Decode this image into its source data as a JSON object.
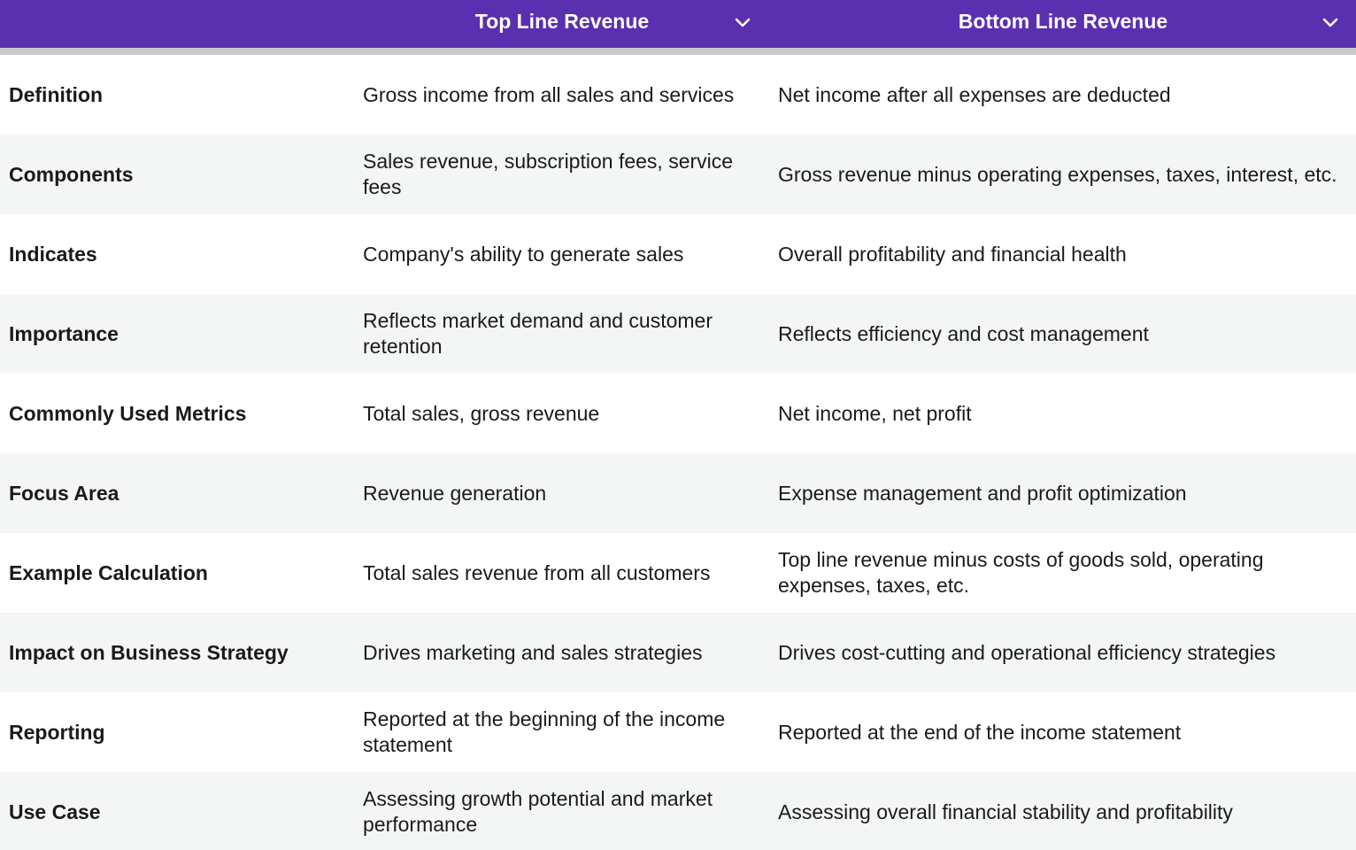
{
  "header": {
    "col1_label": "Top Line Revenue",
    "col2_label": "Bottom Line Revenue"
  },
  "colors": {
    "header_bg": "#5a2fb0",
    "header_text": "#ffffff",
    "row_alt": "#f4f6f6"
  },
  "rows": [
    {
      "label": "Definition",
      "top": "Gross income from all sales and services",
      "bottom": "Net income after all expenses are deducted"
    },
    {
      "label": "Components",
      "top": "Sales revenue, subscription fees, service fees",
      "bottom": "Gross revenue minus operating expenses, taxes, interest, etc."
    },
    {
      "label": "Indicates",
      "top": "Company's ability to generate sales",
      "bottom": "Overall profitability and financial health"
    },
    {
      "label": "Importance",
      "top": "Reflects market demand and customer retention",
      "bottom": "Reflects efficiency and cost management"
    },
    {
      "label": "Commonly Used Metrics",
      "top": "Total sales, gross revenue",
      "bottom": "Net income, net profit"
    },
    {
      "label": "Focus Area",
      "top": "Revenue generation",
      "bottom": "Expense management and profit optimization"
    },
    {
      "label": "Example Calculation",
      "top": "Total sales revenue from all customers",
      "bottom": "Top line revenue minus costs of goods sold, operating expenses, taxes, etc."
    },
    {
      "label": "Impact on Business Strategy",
      "top": "Drives marketing and sales strategies",
      "bottom": "Drives cost-cutting and operational efficiency strategies"
    },
    {
      "label": "Reporting",
      "top": "Reported at the beginning of the income statement",
      "bottom": "Reported at the end of the income statement"
    },
    {
      "label": "Use Case",
      "top": "Assessing growth potential and market performance",
      "bottom": "Assessing overall financial stability and profitability"
    }
  ]
}
